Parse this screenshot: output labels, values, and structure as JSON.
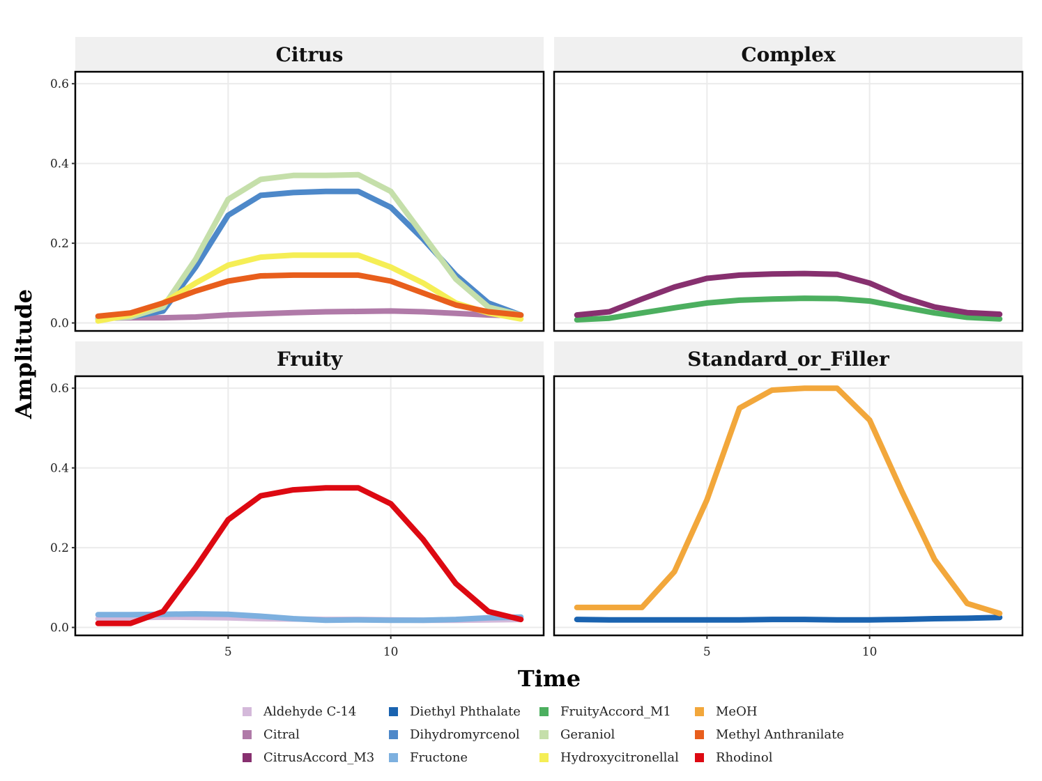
{
  "chart_data": {
    "type": "line",
    "title": "",
    "xlabel": "Time",
    "ylabel": "Amplitude",
    "xlim": [
      0.3,
      14.7
    ],
    "ylim": [
      -0.02,
      0.63
    ],
    "x_ticks": [
      5,
      10
    ],
    "x_tick_labels": [
      "5",
      "10"
    ],
    "y_ticks": [
      0.0,
      0.2,
      0.4,
      0.6
    ],
    "y_tick_labels": [
      "0.0",
      "0.2",
      "0.4",
      "0.6"
    ],
    "grid": true,
    "legend_position": "bottom",
    "x": [
      1,
      2,
      3,
      4,
      5,
      6,
      7,
      8,
      9,
      10,
      11,
      12,
      13,
      14
    ],
    "facets": [
      {
        "name": "Citrus",
        "series": [
          {
            "name": "Citral",
            "values": [
              0.012,
              0.013,
              0.013,
              0.015,
              0.02,
              0.023,
              0.026,
              0.028,
              0.029,
              0.03,
              0.028,
              0.024,
              0.02,
              0.018
            ]
          },
          {
            "name": "Dihydromyrcenol",
            "values": [
              0.01,
              0.015,
              0.03,
              0.14,
              0.27,
              0.32,
              0.327,
              0.33,
              0.33,
              0.29,
              0.21,
              0.12,
              0.05,
              0.02
            ]
          },
          {
            "name": "Geraniol",
            "values": [
              0.01,
              0.015,
              0.04,
              0.16,
              0.31,
              0.36,
              0.37,
              0.37,
              0.372,
              0.33,
              0.22,
              0.11,
              0.04,
              0.02
            ]
          },
          {
            "name": "Hydroxycitronellal",
            "values": [
              0.005,
              0.02,
              0.05,
              0.1,
              0.145,
              0.165,
              0.17,
              0.17,
              0.17,
              0.14,
              0.1,
              0.05,
              0.025,
              0.01
            ]
          },
          {
            "name": "Methyl Anthranilate",
            "values": [
              0.017,
              0.025,
              0.05,
              0.08,
              0.105,
              0.118,
              0.12,
              0.12,
              0.12,
              0.105,
              0.075,
              0.045,
              0.028,
              0.02
            ]
          }
        ]
      },
      {
        "name": "Complex",
        "series": [
          {
            "name": "FruityAccord_M1",
            "values": [
              0.008,
              0.012,
              0.025,
              0.038,
              0.05,
              0.057,
              0.06,
              0.062,
              0.061,
              0.055,
              0.04,
              0.025,
              0.014,
              0.01
            ]
          },
          {
            "name": "CitrusAccord_M3",
            "values": [
              0.02,
              0.028,
              0.06,
              0.09,
              0.112,
              0.12,
              0.123,
              0.124,
              0.122,
              0.1,
              0.065,
              0.04,
              0.026,
              0.022
            ]
          }
        ]
      },
      {
        "name": "Fruity",
        "series": [
          {
            "name": "Aldehyde C-14",
            "values": [
              0.022,
              0.024,
              0.026,
              0.025,
              0.024,
              0.022,
              0.021,
              0.02,
              0.02,
              0.019,
              0.018,
              0.018,
              0.019,
              0.02
            ]
          },
          {
            "name": "Fructone",
            "values": [
              0.032,
              0.032,
              0.033,
              0.034,
              0.033,
              0.028,
              0.022,
              0.018,
              0.019,
              0.018,
              0.018,
              0.02,
              0.024,
              0.026
            ]
          },
          {
            "name": "Rhodinol",
            "values": [
              0.01,
              0.01,
              0.04,
              0.15,
              0.27,
              0.33,
              0.345,
              0.35,
              0.35,
              0.31,
              0.22,
              0.11,
              0.04,
              0.02
            ]
          }
        ]
      },
      {
        "name": "Standard_or_Filler",
        "series": [
          {
            "name": "Diethyl Phthalate",
            "values": [
              0.02,
              0.019,
              0.019,
              0.019,
              0.019,
              0.019,
              0.02,
              0.02,
              0.019,
              0.019,
              0.02,
              0.022,
              0.023,
              0.025
            ]
          },
          {
            "name": "MeOH",
            "values": [
              0.05,
              0.05,
              0.05,
              0.14,
              0.32,
              0.55,
              0.595,
              0.6,
              0.6,
              0.52,
              0.34,
              0.17,
              0.06,
              0.035
            ]
          }
        ]
      }
    ],
    "legend": [
      {
        "name": "Aldehyde C-14",
        "color": "#D4B9DA"
      },
      {
        "name": "Citral",
        "color": "#B07AA8"
      },
      {
        "name": "CitrusAccord_M3",
        "color": "#87306F"
      },
      {
        "name": "Diethyl Phthalate",
        "color": "#1A63B0"
      },
      {
        "name": "Dihydromyrcenol",
        "color": "#4D88C9"
      },
      {
        "name": "Fructone",
        "color": "#7DB0DF"
      },
      {
        "name": "FruityAccord_M1",
        "color": "#4CAF5F"
      },
      {
        "name": "Geraniol",
        "color": "#C5DFAA"
      },
      {
        "name": "Hydroxycitronellal",
        "color": "#F5EE55"
      },
      {
        "name": "MeOH",
        "color": "#F2A73B"
      },
      {
        "name": "Methyl Anthranilate",
        "color": "#E85E1C"
      },
      {
        "name": "Rhodinol",
        "color": "#DD0912"
      }
    ]
  }
}
